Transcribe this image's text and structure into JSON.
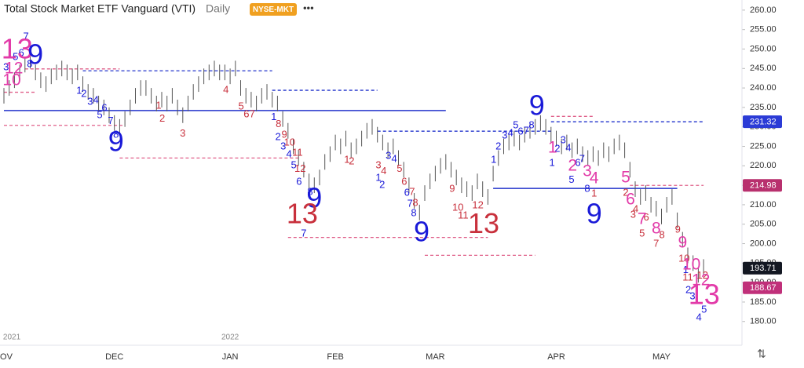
{
  "chart_data": {
    "type": "ohlc",
    "title": "Total Stock Market ETF Vanguard (VTI)",
    "interval": "Daily",
    "exchange": "NYSE-MKT",
    "menu": "•••",
    "ylim": [
      173.9,
      262.6
    ],
    "yticks": [
      {
        "value": 180,
        "label": "180.00"
      },
      {
        "value": 185,
        "label": "185.00"
      },
      {
        "value": 190,
        "label": "190.00"
      },
      {
        "value": 195,
        "label": "195.00"
      },
      {
        "value": 200,
        "label": "200.00"
      },
      {
        "value": 205,
        "label": "205.00"
      },
      {
        "value": 210,
        "label": "210.00"
      },
      {
        "value": 215,
        "label": "215.00"
      },
      {
        "value": 220,
        "label": "220.00"
      },
      {
        "value": 225,
        "label": "225.00"
      },
      {
        "value": 230,
        "label": "230.00"
      },
      {
        "value": 235,
        "label": "235.00"
      },
      {
        "value": 240,
        "label": "240.00"
      },
      {
        "value": 245,
        "label": "245.00"
      },
      {
        "value": 250,
        "label": "250.00"
      },
      {
        "value": 255,
        "label": "255.00"
      },
      {
        "value": 260,
        "label": "260.00"
      }
    ],
    "x_labels": [
      [
        "OV",
        0
      ],
      [
        "DEC",
        21
      ],
      [
        "JAN",
        43
      ],
      [
        "FEB",
        63
      ],
      [
        "MAR",
        82
      ],
      [
        "APR",
        105
      ],
      [
        "MAY",
        125
      ]
    ],
    "year_labels": [
      [
        "2021",
        1.5
      ],
      [
        "2022",
        43
      ]
    ],
    "bar_color": "#555555",
    "high": [
      240,
      242,
      244,
      246,
      248,
      249,
      246,
      244,
      243,
      245,
      246,
      247,
      246,
      245,
      246,
      243,
      241,
      240,
      238,
      237,
      235,
      233,
      232,
      234,
      237,
      240,
      242,
      242,
      240,
      238,
      239,
      238,
      240,
      237,
      235,
      238,
      241,
      243,
      245,
      246,
      247,
      246,
      246,
      245,
      247,
      242,
      240,
      239,
      238,
      240,
      241,
      239,
      238,
      234,
      231,
      227,
      224,
      221,
      218,
      217,
      219,
      223,
      225,
      228,
      227,
      229,
      226,
      227,
      229,
      231,
      232,
      230,
      228,
      226,
      227,
      224,
      221,
      217,
      213,
      210,
      215,
      218,
      220,
      222,
      223,
      221,
      219,
      217,
      216,
      215,
      218,
      216,
      214,
      220,
      224,
      227,
      228,
      229,
      228,
      230,
      231,
      232,
      233,
      232,
      230,
      229,
      227,
      228,
      226,
      227,
      225,
      224,
      225,
      224,
      226,
      225,
      227,
      228,
      226,
      221,
      216,
      214,
      215,
      212,
      211,
      209,
      212,
      214,
      208,
      203,
      199,
      197,
      194,
      196
    ],
    "low": [
      236,
      238,
      240,
      242,
      244,
      245,
      242,
      240,
      239,
      241,
      242,
      243,
      242,
      241,
      242,
      239,
      237,
      236,
      234,
      233,
      231,
      229,
      228,
      230,
      233,
      236,
      238,
      238,
      236,
      234,
      235,
      234,
      236,
      233,
      231,
      234,
      237,
      239,
      241,
      242,
      243,
      242,
      242,
      241,
      243,
      238,
      236,
      235,
      234,
      236,
      237,
      235,
      234,
      230,
      227,
      223,
      220,
      217,
      214,
      213,
      215,
      219,
      221,
      224,
      223,
      225,
      222,
      223,
      225,
      227,
      228,
      226,
      224,
      222,
      223,
      220,
      217,
      213,
      209,
      206,
      211,
      214,
      216,
      218,
      219,
      217,
      215,
      213,
      212,
      211,
      214,
      212,
      210,
      216,
      220,
      223,
      224,
      225,
      224,
      226,
      227,
      228,
      229,
      228,
      226,
      225,
      223,
      224,
      222,
      223,
      221,
      220,
      221,
      220,
      222,
      221,
      223,
      224,
      222,
      217,
      212,
      210,
      211,
      208,
      207,
      205,
      208,
      210,
      204,
      199,
      195,
      193,
      190,
      192
    ],
    "levels": [
      {
        "value": 244.4,
        "start": 15,
        "end": 51,
        "color": "#2233cc",
        "dashed": true
      },
      {
        "value": 239.4,
        "start": 51,
        "end": 71,
        "color": "#2233cc",
        "dashed": true
      },
      {
        "value": 234.2,
        "start": 0,
        "end": 84,
        "color": "#2233cc",
        "dashed": false
      },
      {
        "value": 228.9,
        "start": 71,
        "end": 104,
        "color": "#2233cc",
        "dashed": true
      },
      {
        "value": 231.32,
        "start": 104,
        "end": 133,
        "color": "#2233cc",
        "dashed": true
      },
      {
        "value": 214.2,
        "start": 93,
        "end": 128,
        "color": "#2233cc",
        "dashed": false
      },
      {
        "value": 244.9,
        "start": 4,
        "end": 22,
        "color": "#e0608a",
        "dashed": true
      },
      {
        "value": 238.9,
        "start": 0,
        "end": 6,
        "color": "#e0608a",
        "dashed": true
      },
      {
        "value": 230.4,
        "start": 0,
        "end": 23,
        "color": "#e0608a",
        "dashed": true
      },
      {
        "value": 222.0,
        "start": 22,
        "end": 56,
        "color": "#e0608a",
        "dashed": true
      },
      {
        "value": 201.6,
        "start": 54,
        "end": 92,
        "color": "#e0608a",
        "dashed": true
      },
      {
        "value": 197.0,
        "start": 80,
        "end": 101,
        "color": "#e0608a",
        "dashed": true
      },
      {
        "value": 232.7,
        "start": 104,
        "end": 112,
        "color": "#e0608a",
        "dashed": true
      },
      {
        "value": 214.98,
        "start": 119,
        "end": 133,
        "color": "#e0608a",
        "dashed": true
      }
    ],
    "price_labels": [
      {
        "value": 231.32,
        "color": "#2b3bd6"
      },
      {
        "value": 214.98,
        "color": "#b8306e"
      },
      {
        "value": 193.71,
        "color": "#131722"
      },
      {
        "value": 188.67,
        "color": "#c0307a"
      }
    ],
    "small_counts": [
      [
        "7",
        4.2,
        253.1,
        "#1a1ad8"
      ],
      [
        "5",
        2.2,
        247.9,
        "#1a1ad8"
      ],
      [
        "6",
        3.3,
        248.9,
        "#1a1ad8"
      ],
      [
        "3",
        0.4,
        245.3,
        "#1a1ad8"
      ],
      [
        "8",
        4.9,
        246.1,
        "#1a1ad8"
      ],
      [
        "1",
        14.3,
        239.2,
        "#1a1ad8"
      ],
      [
        "2",
        15.2,
        238.4,
        "#1a1ad8"
      ],
      [
        "3",
        16.4,
        236.4,
        "#1a1ad8"
      ],
      [
        "4",
        17.5,
        236.8,
        "#1a1ad8"
      ],
      [
        "6",
        19.1,
        234.8,
        "#1a1ad8"
      ],
      [
        "5",
        18.2,
        233.0,
        "#1a1ad8"
      ],
      [
        "7",
        20.3,
        231.4,
        "#1a1ad8"
      ],
      [
        "8",
        21.3,
        227.9,
        "#1a1ad8"
      ],
      [
        "1",
        29.4,
        235.4,
        "#c8303c"
      ],
      [
        "2",
        30.1,
        232.0,
        "#c8303c"
      ],
      [
        "3",
        34.0,
        228.2,
        "#c8303c"
      ],
      [
        "4",
        42.2,
        239.4,
        "#c8303c"
      ],
      [
        "5",
        45.1,
        235.2,
        "#c8303c"
      ],
      [
        "6",
        46.1,
        233.2,
        "#c8303c"
      ],
      [
        "7",
        47.2,
        233.2,
        "#c8303c"
      ],
      [
        "1",
        51.3,
        232.4,
        "#1a1ad8"
      ],
      [
        "8",
        52.2,
        230.6,
        "#c8303c"
      ],
      [
        "2",
        52.1,
        227.3,
        "#1a1ad8"
      ],
      [
        "9",
        53.3,
        227.9,
        "#c8303c"
      ],
      [
        "3",
        53.1,
        224.9,
        "#1a1ad8"
      ],
      [
        "10",
        54.3,
        225.9,
        "#c8303c"
      ],
      [
        "4",
        54.2,
        222.9,
        "#1a1ad8"
      ],
      [
        "11",
        55.8,
        223.3,
        "#c8303c"
      ],
      [
        "5",
        55.1,
        220.1,
        "#1a1ad8"
      ],
      [
        "12",
        56.3,
        219.1,
        "#c8303c"
      ],
      [
        "6",
        56.1,
        215.8,
        "#1a1ad8"
      ],
      [
        "8",
        58.2,
        213.2,
        "#1a1ad8"
      ],
      [
        "7",
        57.0,
        202.5,
        "#1a1ad8"
      ],
      [
        "1",
        65.2,
        221.5,
        "#c8303c"
      ],
      [
        "2",
        66.1,
        221.1,
        "#c8303c"
      ],
      [
        "3",
        71.2,
        220.1,
        "#c8303c"
      ],
      [
        "4",
        72.2,
        218.5,
        "#c8303c"
      ],
      [
        "3",
        73.1,
        222.5,
        "#1a1ad8"
      ],
      [
        "4",
        74.2,
        221.7,
        "#1a1ad8"
      ],
      [
        "1",
        71.2,
        216.8,
        "#1a1ad8"
      ],
      [
        "2",
        71.9,
        215.0,
        "#1a1ad8"
      ],
      [
        "5",
        75.2,
        219.1,
        "#c8303c"
      ],
      [
        "6",
        76.1,
        215.8,
        "#c8303c"
      ],
      [
        "6",
        76.6,
        213.0,
        "#1a1ad8"
      ],
      [
        "7",
        77.6,
        213.2,
        "#c8303c"
      ],
      [
        "7",
        77.2,
        210.2,
        "#1a1ad8"
      ],
      [
        "8",
        78.2,
        210.4,
        "#c8303c"
      ],
      [
        "8",
        77.9,
        207.8,
        "#1a1ad8"
      ],
      [
        "9",
        85.2,
        214.0,
        "#c8303c"
      ],
      [
        "10",
        86.3,
        209.2,
        "#c8303c"
      ],
      [
        "11",
        87.3,
        207.2,
        "#c8303c"
      ],
      [
        "12",
        90.1,
        209.8,
        "#c8303c"
      ],
      [
        "1",
        93.1,
        221.5,
        "#1a1ad8"
      ],
      [
        "2",
        94.0,
        224.9,
        "#1a1ad8"
      ],
      [
        "3",
        95.2,
        227.7,
        "#1a1ad8"
      ],
      [
        "4",
        96.3,
        228.3,
        "#1a1ad8"
      ],
      [
        "5",
        97.3,
        230.3,
        "#1a1ad8"
      ],
      [
        "6",
        98.2,
        228.7,
        "#1a1ad8"
      ],
      [
        "7",
        99.3,
        228.9,
        "#1a1ad8"
      ],
      [
        "8",
        100.3,
        230.3,
        "#1a1ad8"
      ],
      [
        "1",
        104.2,
        220.7,
        "#1a1ad8"
      ],
      [
        "2",
        105.2,
        224.3,
        "#1a1ad8"
      ],
      [
        "3",
        106.3,
        226.5,
        "#1a1ad8"
      ],
      [
        "4",
        107.3,
        224.5,
        "#1a1ad8"
      ],
      [
        "5",
        107.9,
        216.3,
        "#1a1ad8"
      ],
      [
        "6",
        109.1,
        220.7,
        "#1a1ad8"
      ],
      [
        "7",
        109.9,
        221.7,
        "#1a1ad8"
      ],
      [
        "8",
        110.9,
        214.0,
        "#1a1ad8"
      ],
      [
        "1",
        112.2,
        212.8,
        "#c8303c"
      ],
      [
        "2",
        118.2,
        213.0,
        "#c8303c"
      ],
      [
        "3",
        119.6,
        207.4,
        "#c8303c"
      ],
      [
        "4",
        120.1,
        208.8,
        "#c8303c"
      ],
      [
        "6",
        122.1,
        206.6,
        "#c8303c"
      ],
      [
        "5",
        121.3,
        202.5,
        "#c8303c"
      ],
      [
        "7",
        124.0,
        199.9,
        "#c8303c"
      ],
      [
        "8",
        125.1,
        202.1,
        "#c8303c"
      ],
      [
        "9",
        128.1,
        203.5,
        "#c8303c"
      ],
      [
        "10",
        129.3,
        196.1,
        "#c8303c"
      ],
      [
        "1",
        129.6,
        193.1,
        "#1a1ad8"
      ],
      [
        "11",
        130.0,
        191.2,
        "#c8303c"
      ],
      [
        "2",
        130.1,
        188.0,
        "#1a1ad8"
      ],
      [
        "12",
        132.8,
        191.7,
        "#c8303c"
      ],
      [
        "3",
        130.9,
        186.4,
        "#1a1ad8"
      ],
      [
        "5",
        133.1,
        183.0,
        "#1a1ad8"
      ],
      [
        "4",
        132.1,
        180.9,
        "#1a1ad8"
      ]
    ],
    "medium_counts": [
      [
        "10",
        1.5,
        241.8,
        "#e23aa8"
      ],
      [
        "12",
        1.9,
        244.9,
        "#e23aa8"
      ],
      [
        "1",
        104.3,
        224.5,
        "#e23aa8"
      ],
      [
        "2",
        108.1,
        219.9,
        "#e23aa8"
      ],
      [
        "3",
        110.9,
        218.5,
        "#e23aa8"
      ],
      [
        "4",
        112.2,
        216.6,
        "#e23aa8"
      ],
      [
        "5",
        118.2,
        216.8,
        "#e23aa8"
      ],
      [
        "6",
        119.1,
        211.2,
        "#e23aa8"
      ],
      [
        "7",
        121.3,
        206.2,
        "#e23aa8"
      ],
      [
        "8",
        124.0,
        203.7,
        "#e23aa8"
      ],
      [
        "9",
        129.0,
        200.1,
        "#e23aa8"
      ],
      [
        "10",
        130.7,
        194.5,
        "#e23aa8"
      ],
      [
        "12",
        132.5,
        190.4,
        "#e23aa8"
      ]
    ],
    "large_counts": [
      [
        "13",
        2.5,
        249.5,
        "#e23aa8"
      ],
      [
        "9",
        6.0,
        248.1,
        "#1a1ad8"
      ],
      [
        "9",
        21.3,
        225.7,
        "#1a1ad8"
      ],
      [
        "9",
        59.0,
        211.2,
        "#1a1ad8"
      ],
      [
        "13",
        56.7,
        207.2,
        "#c8303c"
      ],
      [
        "9",
        79.4,
        202.5,
        "#1a1ad8"
      ],
      [
        "13",
        91.2,
        204.6,
        "#c8303c"
      ],
      [
        "9",
        101.3,
        235.0,
        "#1a1ad8"
      ],
      [
        "9",
        112.2,
        207.2,
        "#1a1ad8"
      ],
      [
        "13",
        133.1,
        186.4,
        "#e23aa8"
      ]
    ]
  }
}
